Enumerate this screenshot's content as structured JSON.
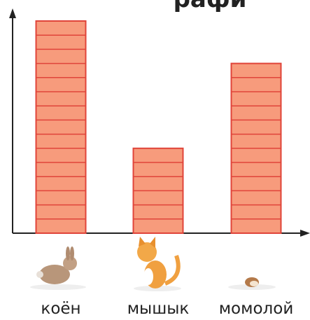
{
  "chart_data": {
    "type": "bar",
    "title": "рафи",
    "categories": [
      "коён",
      "мышык",
      "момолой"
    ],
    "values": [
      15,
      6,
      12
    ],
    "color": "#f79b7c",
    "edge_color": "#e0443a"
  }
}
